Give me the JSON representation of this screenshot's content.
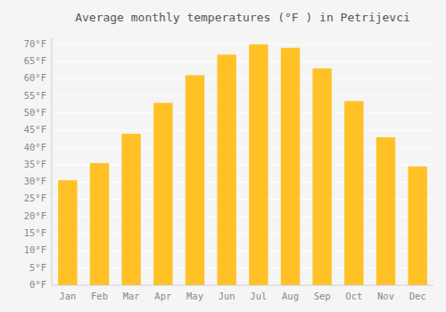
{
  "chart_data": {
    "type": "bar",
    "title": "Average monthly temperatures (°F ) in Petrijevci",
    "categories": [
      "Jan",
      "Feb",
      "Mar",
      "Apr",
      "May",
      "Jun",
      "Jul",
      "Aug",
      "Sep",
      "Oct",
      "Nov",
      "Dec"
    ],
    "values": [
      30.5,
      35.5,
      44,
      53,
      61,
      67,
      70,
      69,
      63,
      53.5,
      43,
      34.5
    ],
    "color": "#FFC125",
    "ylim": [
      0,
      72
    ],
    "yticks": [
      {
        "value": 0,
        "label": "0°F"
      },
      {
        "value": 5,
        "label": "5°F"
      },
      {
        "value": 10,
        "label": "10°F"
      },
      {
        "value": 15,
        "label": "15°F"
      },
      {
        "value": 20,
        "label": "20°F"
      },
      {
        "value": 25,
        "label": "25°F"
      },
      {
        "value": 30,
        "label": "30°F"
      },
      {
        "value": 35,
        "label": "35°F"
      },
      {
        "value": 40,
        "label": "40°F"
      },
      {
        "value": 45,
        "label": "45°F"
      },
      {
        "value": 50,
        "label": "50°F"
      },
      {
        "value": 55,
        "label": "55°F"
      },
      {
        "value": 60,
        "label": "60°F"
      },
      {
        "value": 65,
        "label": "65°F"
      },
      {
        "value": 70,
        "label": "70°F"
      }
    ],
    "grid": true
  }
}
